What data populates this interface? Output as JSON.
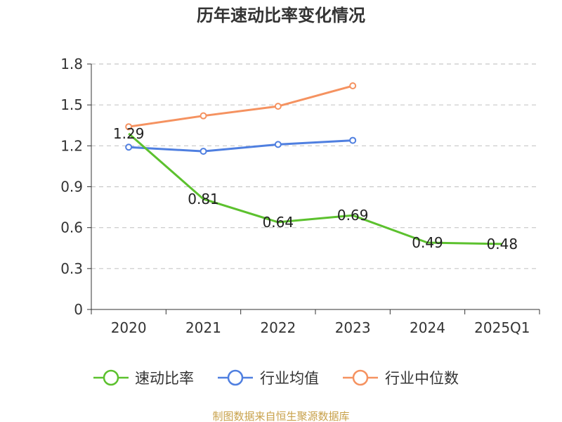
{
  "chart_data": {
    "type": "line",
    "title": "历年速动比率变化情况",
    "categories": [
      "2020",
      "2021",
      "2022",
      "2023",
      "2024",
      "2025Q1"
    ],
    "y_ticks": [
      "0",
      "0.3",
      "0.6",
      "0.9",
      "1.2",
      "1.5",
      "1.8"
    ],
    "ylim": [
      0,
      1.8
    ],
    "grid": true,
    "legend_position": "bottom",
    "series": [
      {
        "name": "速动比率",
        "values": [
          1.29,
          0.81,
          0.64,
          0.69,
          0.49,
          0.48
        ],
        "labels": [
          "1.29",
          "0.81",
          "0.64",
          "0.69",
          "0.49",
          "0.48"
        ],
        "color": "#5cc12e",
        "show_labels": true
      },
      {
        "name": "行业均值",
        "values": [
          1.19,
          1.16,
          1.21,
          1.24,
          null,
          null
        ],
        "color": "#4f7fe0",
        "show_labels": false
      },
      {
        "name": "行业中位数",
        "values": [
          1.34,
          1.42,
          1.49,
          1.64,
          null,
          null
        ],
        "color": "#f59260",
        "show_labels": false
      }
    ]
  },
  "footer": {
    "source": "制图数据来自恒生聚源数据库",
    "source_color": "#c8a14a"
  }
}
